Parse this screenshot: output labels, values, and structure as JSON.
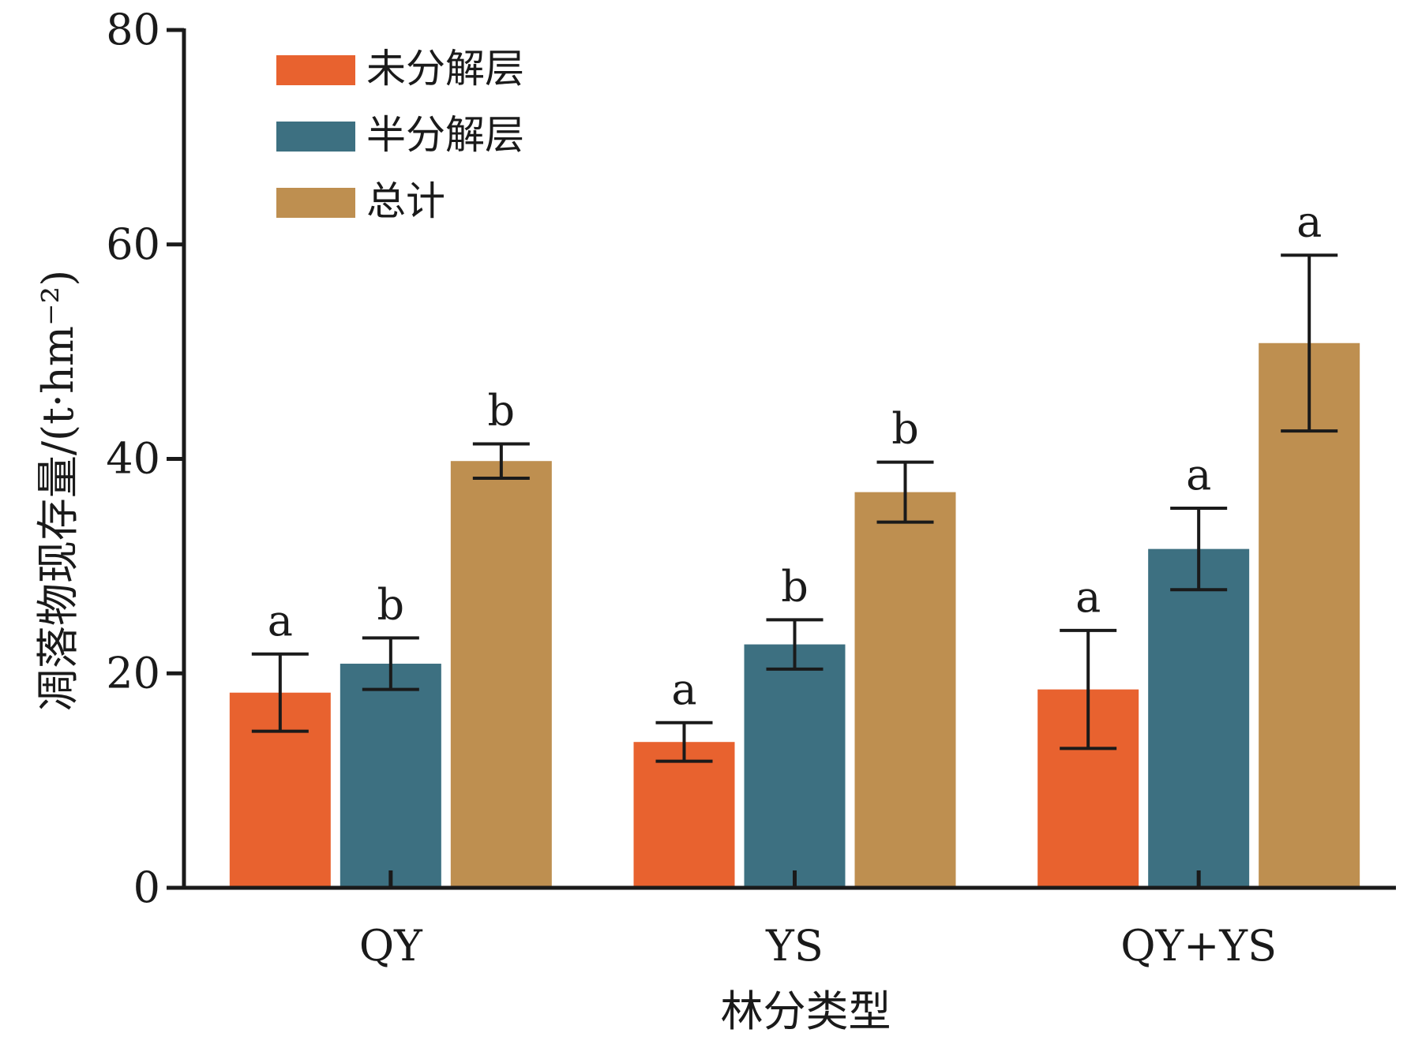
{
  "chart_data": {
    "type": "bar",
    "categories": [
      "QY",
      "YS",
      "QY+YS"
    ],
    "series": [
      {
        "name": "未分解层",
        "color": "#e8622f",
        "values": [
          18.2,
          13.6,
          18.5
        ],
        "errors": [
          3.6,
          1.8,
          5.5
        ],
        "labels": [
          "a",
          "a",
          "a"
        ]
      },
      {
        "name": "半分解层",
        "color": "#3d7081",
        "values": [
          20.9,
          22.7,
          31.6
        ],
        "errors": [
          2.4,
          2.3,
          3.8
        ],
        "labels": [
          "b",
          "b",
          "a"
        ]
      },
      {
        "name": "总计",
        "color": "#be8f50",
        "values": [
          39.8,
          36.9,
          50.8
        ],
        "errors": [
          1.6,
          2.8,
          8.2
        ],
        "labels": [
          "b",
          "b",
          "a"
        ]
      }
    ],
    "xlabel": "林分类型",
    "ylabel": "凋落物现存量/(t·hm⁻²)",
    "ylim": [
      0,
      80
    ],
    "yticks": [
      0,
      20,
      40,
      60,
      80
    ],
    "legend_position": "top-left",
    "grid": false
  }
}
